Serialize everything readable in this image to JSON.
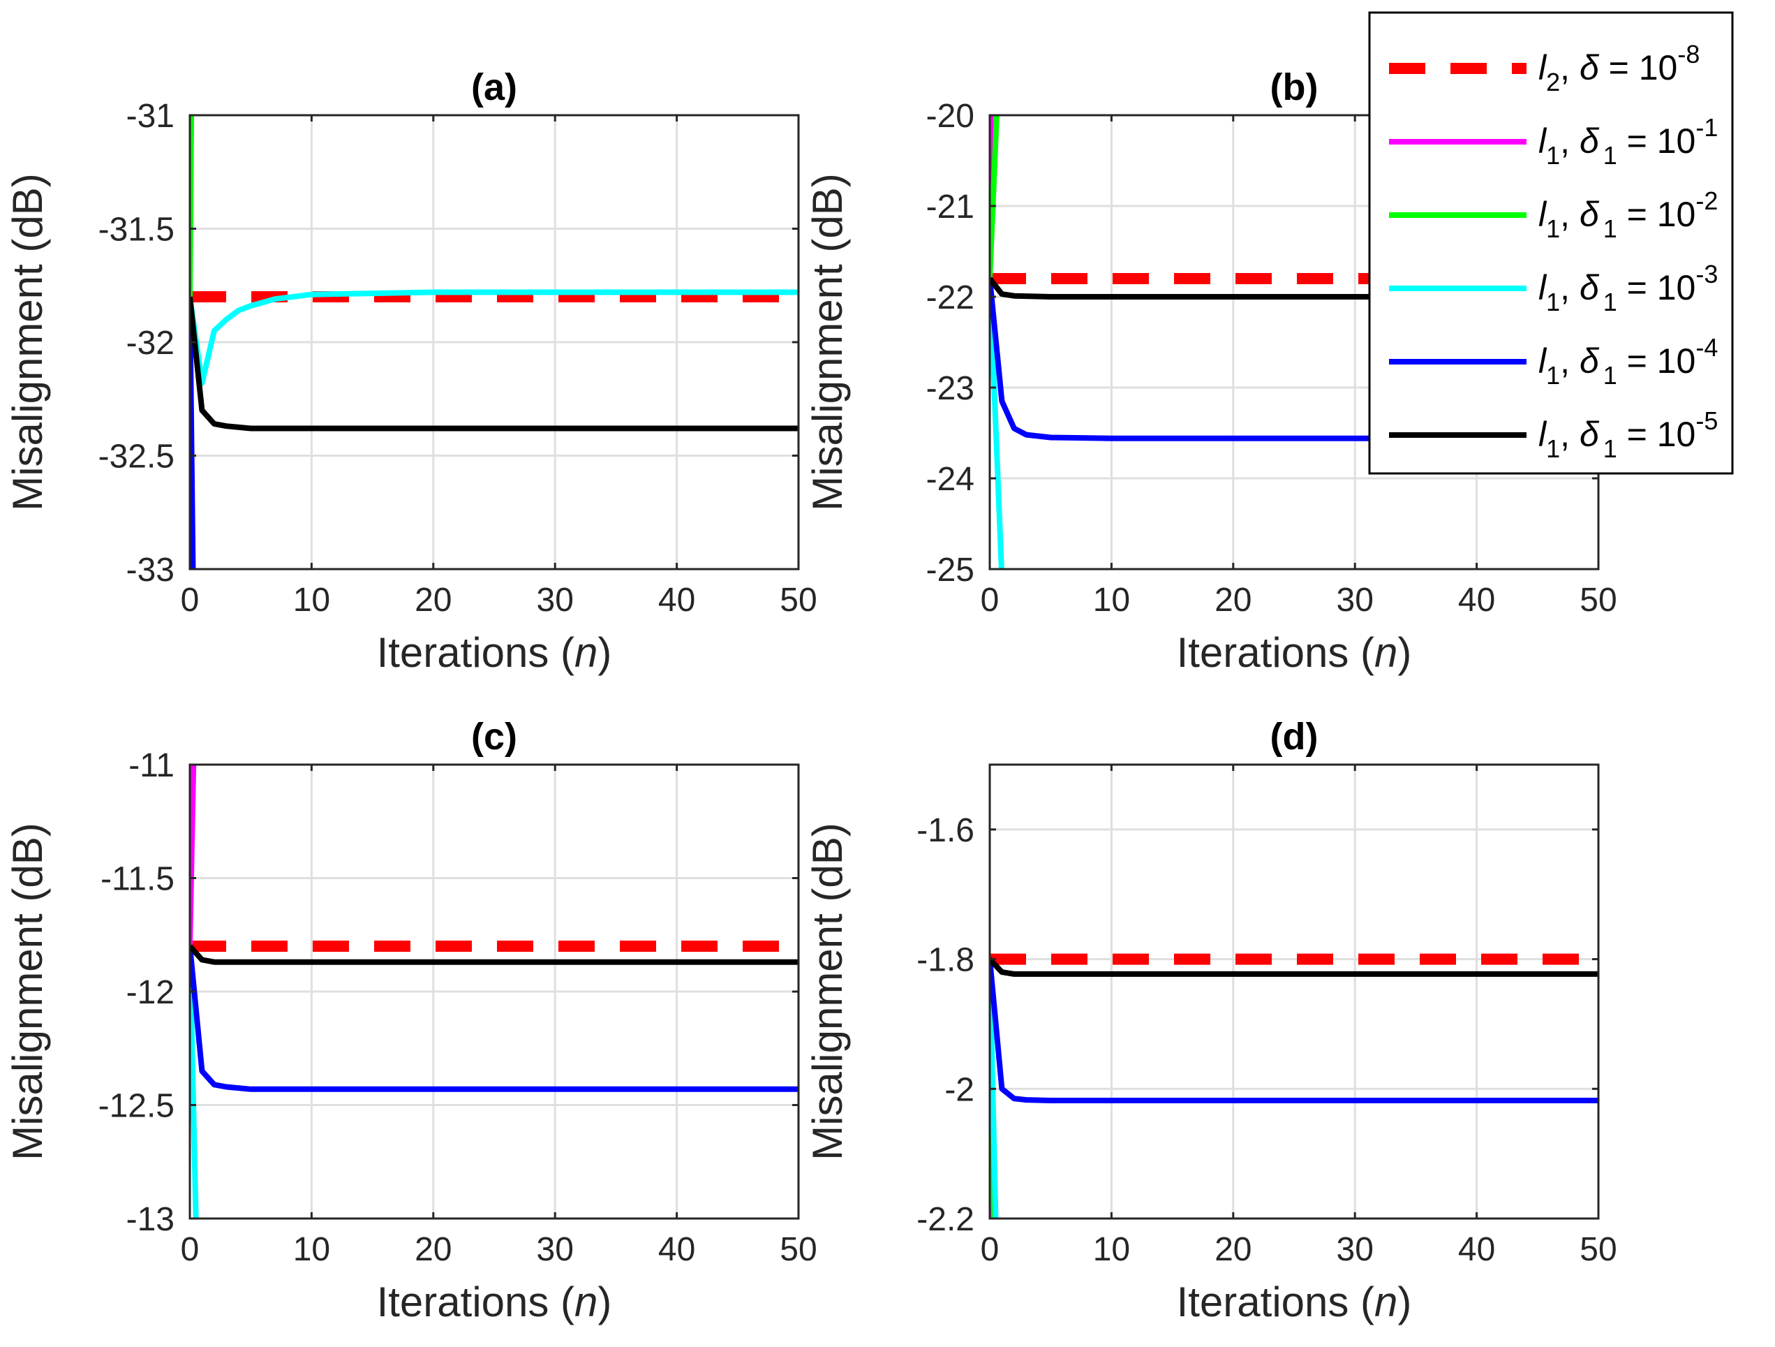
{
  "colors": {
    "l2": "#ff0000",
    "d1e1": "#ff00ff",
    "d1e2": "#00ff00",
    "d1e3": "#00ffff",
    "d1e4": "#0000ff",
    "d1e5": "#000000",
    "grid": "#dfdfdf",
    "axis": "#262626"
  },
  "legend": {
    "placement": "top-right",
    "entries": [
      {
        "key": "l2",
        "norm": "l",
        "norm_sub": "2",
        "delta": "δ",
        "delta_sub": "",
        "eq": " = 10",
        "exp": "-8",
        "dashed": true
      },
      {
        "key": "d1e1",
        "norm": "l",
        "norm_sub": "1",
        "delta": "δ",
        "delta_sub": "1",
        "eq": " = 10",
        "exp": "-1",
        "dashed": false
      },
      {
        "key": "d1e2",
        "norm": "l",
        "norm_sub": "1",
        "delta": "δ",
        "delta_sub": "1",
        "eq": " = 10",
        "exp": "-2",
        "dashed": false
      },
      {
        "key": "d1e3",
        "norm": "l",
        "norm_sub": "1",
        "delta": "δ",
        "delta_sub": "1",
        "eq": " = 10",
        "exp": "-3",
        "dashed": false
      },
      {
        "key": "d1e4",
        "norm": "l",
        "norm_sub": "1",
        "delta": "δ",
        "delta_sub": "1",
        "eq": " = 10",
        "exp": "-4",
        "dashed": false
      },
      {
        "key": "d1e5",
        "norm": "l",
        "norm_sub": "1",
        "delta": "δ",
        "delta_sub": "1",
        "eq": " = 10",
        "exp": "-5",
        "dashed": false
      }
    ]
  },
  "chart_data": [
    {
      "type": "line",
      "title": "(a)",
      "xlabel_text": "Iterations (",
      "xlabel_var": "n",
      "xlabel_end": ")",
      "ylabel": "Misalignment (dB)",
      "xlim": [
        0,
        50
      ],
      "ylim": [
        -33,
        -31
      ],
      "xticks": [
        "0",
        "10",
        "20",
        "30",
        "40",
        "50"
      ],
      "yticks": [
        "-31",
        "-31.5",
        "-32",
        "-32.5",
        "-33"
      ],
      "grid": true,
      "series": [
        {
          "key": "l2",
          "points": [
            [
              0,
              -31.8
            ],
            [
              50,
              -31.8
            ]
          ]
        },
        {
          "key": "d1e1",
          "points": [
            [
              0,
              -31.8
            ],
            [
              0.02,
              -29
            ]
          ]
        },
        {
          "key": "d1e2",
          "points": [
            [
              0,
              -31.8
            ],
            [
              0.15,
              -30.8
            ]
          ]
        },
        {
          "key": "d1e3",
          "points": [
            [
              0,
              -31.8
            ],
            [
              1,
              -32.18
            ],
            [
              2,
              -31.95
            ],
            [
              3,
              -31.9
            ],
            [
              4,
              -31.86
            ],
            [
              5,
              -31.84
            ],
            [
              7,
              -31.81
            ],
            [
              10,
              -31.79
            ],
            [
              15,
              -31.785
            ],
            [
              20,
              -31.78
            ],
            [
              30,
              -31.78
            ],
            [
              50,
              -31.78
            ]
          ]
        },
        {
          "key": "d1e4",
          "points": [
            [
              0,
              -31.8
            ],
            [
              0.3,
              -33.2
            ]
          ]
        },
        {
          "key": "d1e5",
          "points": [
            [
              0,
              -31.8
            ],
            [
              1,
              -32.3
            ],
            [
              2,
              -32.36
            ],
            [
              3,
              -32.37
            ],
            [
              5,
              -32.38
            ],
            [
              10,
              -32.38
            ],
            [
              50,
              -32.38
            ]
          ]
        }
      ]
    },
    {
      "type": "line",
      "title": "(b)",
      "xlabel_text": "Iterations (",
      "xlabel_var": "n",
      "xlabel_end": ")",
      "ylabel": "Misalignment (dB)",
      "xlim": [
        0,
        50
      ],
      "ylim": [
        -25,
        -20
      ],
      "xticks": [
        "0",
        "10",
        "20",
        "30",
        "40",
        "50"
      ],
      "yticks": [
        "-20",
        "-21",
        "-22",
        "-23",
        "-24",
        "-25"
      ],
      "grid": true,
      "series": [
        {
          "key": "l2",
          "points": [
            [
              0,
              -21.8
            ],
            [
              50,
              -21.8
            ]
          ]
        },
        {
          "key": "d1e1",
          "points": [
            [
              0,
              -21.8
            ],
            [
              0.1,
              -19.9
            ]
          ]
        },
        {
          "key": "d1e2",
          "points": [
            [
              0,
              -21.8
            ],
            [
              0.6,
              -19.9
            ]
          ]
        },
        {
          "key": "d1e3",
          "points": [
            [
              0,
              -21.8
            ],
            [
              1,
              -25.1
            ]
          ]
        },
        {
          "key": "d1e4",
          "points": [
            [
              0,
              -21.8
            ],
            [
              1,
              -23.15
            ],
            [
              2,
              -23.45
            ],
            [
              3,
              -23.52
            ],
            [
              5,
              -23.55
            ],
            [
              10,
              -23.56
            ],
            [
              50,
              -23.56
            ]
          ]
        },
        {
          "key": "d1e5",
          "points": [
            [
              0,
              -21.8
            ],
            [
              1,
              -21.97
            ],
            [
              2,
              -21.99
            ],
            [
              5,
              -22.0
            ],
            [
              50,
              -22.0
            ]
          ]
        }
      ]
    },
    {
      "type": "line",
      "title": "(c)",
      "xlabel_text": "Iterations (",
      "xlabel_var": "n",
      "xlabel_end": ")",
      "ylabel": "Misalignment (dB)",
      "xlim": [
        0,
        50
      ],
      "ylim": [
        -13,
        -11
      ],
      "xticks": [
        "0",
        "10",
        "20",
        "30",
        "40",
        "50"
      ],
      "yticks": [
        "-11",
        "-11.5",
        "-12",
        "-12.5",
        "-13"
      ],
      "grid": true,
      "series": [
        {
          "key": "l2",
          "points": [
            [
              0,
              -11.8
            ],
            [
              50,
              -11.8
            ]
          ]
        },
        {
          "key": "d1e1",
          "points": [
            [
              0,
              -11.8
            ],
            [
              0.3,
              -11.0
            ]
          ]
        },
        {
          "key": "d1e2",
          "points": [
            [
              0,
              -11.8
            ],
            [
              0.1,
              -12.0
            ]
          ]
        },
        {
          "key": "d1e3",
          "points": [
            [
              0,
              -11.8
            ],
            [
              0.5,
              -13.0
            ]
          ]
        },
        {
          "key": "d1e4",
          "points": [
            [
              0,
              -11.8
            ],
            [
              1,
              -12.35
            ],
            [
              2,
              -12.41
            ],
            [
              3,
              -12.42
            ],
            [
              5,
              -12.43
            ],
            [
              10,
              -12.43
            ],
            [
              50,
              -12.43
            ]
          ]
        },
        {
          "key": "d1e5",
          "points": [
            [
              0,
              -11.8
            ],
            [
              1,
              -11.86
            ],
            [
              2,
              -11.87
            ],
            [
              50,
              -11.87
            ]
          ]
        }
      ]
    },
    {
      "type": "line",
      "title": "(d)",
      "xlabel_text": "Iterations (",
      "xlabel_var": "n",
      "xlabel_end": ")",
      "ylabel": "Misalignment (dB)",
      "xlim": [
        0,
        50
      ],
      "ylim": [
        -2.2,
        -1.5
      ],
      "xticks": [
        "0",
        "10",
        "20",
        "30",
        "40",
        "50"
      ],
      "yticks": [
        "-1.6",
        "-1.8",
        "-2",
        "-2.2"
      ],
      "ytick_values": [
        -1.6,
        -1.8,
        -2.0,
        -2.2
      ],
      "grid": true,
      "series": [
        {
          "key": "l2",
          "points": [
            [
              0,
              -1.8
            ],
            [
              50,
              -1.8
            ]
          ]
        },
        {
          "key": "d1e1",
          "points": [
            [
              0,
              -1.8
            ],
            [
              0.1,
              -2.25
            ]
          ]
        },
        {
          "key": "d1e2",
          "points": [
            [
              0,
              -1.8
            ],
            [
              0.35,
              -2.21
            ]
          ]
        },
        {
          "key": "d1e3",
          "points": [
            [
              0,
              -1.8
            ],
            [
              0.5,
              -2.21
            ]
          ]
        },
        {
          "key": "d1e4",
          "points": [
            [
              0,
              -1.8
            ],
            [
              1,
              -2.0
            ],
            [
              2,
              -2.015
            ],
            [
              3,
              -2.017
            ],
            [
              5,
              -2.018
            ],
            [
              50,
              -2.018
            ]
          ]
        },
        {
          "key": "d1e5",
          "points": [
            [
              0,
              -1.8
            ],
            [
              1,
              -1.82
            ],
            [
              2,
              -1.823
            ],
            [
              50,
              -1.823
            ]
          ]
        }
      ]
    }
  ]
}
